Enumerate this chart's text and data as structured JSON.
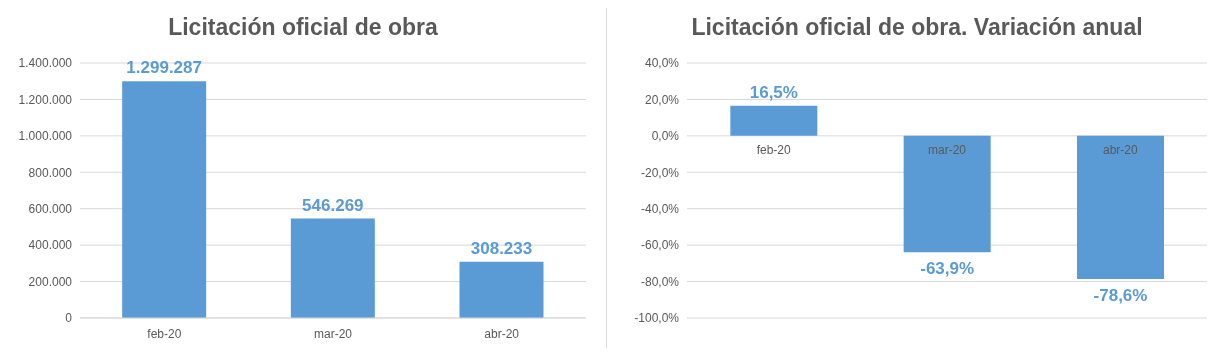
{
  "chart_data": [
    {
      "type": "bar",
      "title": "Licitación oficial de obra",
      "categories": [
        "feb-20",
        "mar-20",
        "abr-20"
      ],
      "values": [
        1299287,
        546269,
        308233
      ],
      "color": "#5b9bd5",
      "ylim": [
        0,
        1400000
      ],
      "yticks": [
        {
          "value": 0,
          "label": "0"
        },
        {
          "value": 200000,
          "label": "200.000"
        },
        {
          "value": 400000,
          "label": "400.000"
        },
        {
          "value": 600000,
          "label": "600.000"
        },
        {
          "value": 800000,
          "label": "800.000"
        },
        {
          "value": 1000000,
          "label": "1.000.000"
        },
        {
          "value": 1200000,
          "label": "1.200.000"
        },
        {
          "value": 1400000,
          "label": "1.400.000"
        }
      ],
      "grid": "y",
      "value_labels": [
        "1.299.287",
        "546.269",
        "308.233"
      ],
      "legend": false
    },
    {
      "type": "bar",
      "title": "Licitación oficial de obra. Variación anual",
      "categories": [
        "feb-20",
        "mar-20",
        "abr-20"
      ],
      "values": [
        16.5,
        -63.9,
        -78.6
      ],
      "color": "#5b9bd5",
      "ylim": [
        -100,
        40
      ],
      "yticks": [
        {
          "value": -100,
          "label": "-100,0%"
        },
        {
          "value": -80,
          "label": "-80,0%"
        },
        {
          "value": -60,
          "label": "-60,0%"
        },
        {
          "value": -40,
          "label": "-40,0%"
        },
        {
          "value": -20,
          "label": "-20,0%"
        },
        {
          "value": 0,
          "label": "0,0%"
        },
        {
          "value": 20,
          "label": "20,0%"
        },
        {
          "value": 40,
          "label": "40,0%"
        }
      ],
      "grid": "y",
      "value_labels": [
        "16,5%",
        "-63,9%",
        "-78,6%"
      ],
      "legend": false
    }
  ]
}
